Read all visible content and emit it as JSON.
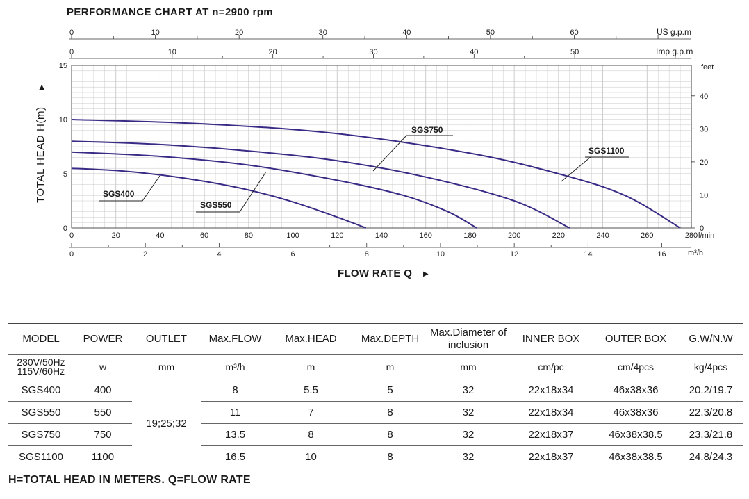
{
  "colors": {
    "curve": "#3a2a86",
    "grid": "#c8c8c8",
    "axis": "#333333",
    "text": "#1a1a1a"
  },
  "chart_data": {
    "type": "line",
    "title": "PERFORMANCE CHART AT n=2900 rpm",
    "ylabel": "TOTAL HEAD H(m)",
    "xlabel": "FLOW RATE Q",
    "ylim": [
      0,
      15
    ],
    "xlim": [
      0,
      280
    ],
    "grid": true,
    "y_ticks": [
      0,
      5,
      10,
      15
    ],
    "x_ticks": [
      0,
      20,
      40,
      60,
      80,
      100,
      120,
      140,
      160,
      180,
      200,
      220,
      240,
      260,
      280
    ],
    "x_unit": "l/min",
    "x2_ticks": [
      0,
      2,
      4,
      6,
      8,
      10,
      12,
      14,
      16
    ],
    "x2_unit": "m³/h",
    "top1_ticks": [
      0,
      10,
      20,
      30,
      40,
      50,
      60
    ],
    "top1_unit": "US g.p.m",
    "top2_ticks": [
      0,
      10,
      20,
      30,
      40,
      50
    ],
    "top2_unit": "Imp g.p.m",
    "right_ticks": [
      0,
      10,
      20,
      30,
      40
    ],
    "right_unit": "feet",
    "series": [
      {
        "name": "SGS400",
        "x": [
          0,
          20,
          40,
          60,
          80,
          100,
          120,
          133
        ],
        "y": [
          5.5,
          5.3,
          4.9,
          4.3,
          3.5,
          2.4,
          1.0,
          0
        ]
      },
      {
        "name": "SGS550",
        "x": [
          0,
          40,
          80,
          120,
          150,
          170,
          183
        ],
        "y": [
          7.0,
          6.6,
          5.8,
          4.4,
          3.0,
          1.5,
          0
        ]
      },
      {
        "name": "SGS750",
        "x": [
          0,
          40,
          80,
          120,
          160,
          200,
          225
        ],
        "y": [
          8.0,
          7.7,
          7.1,
          6.2,
          4.7,
          2.5,
          0
        ]
      },
      {
        "name": "SGS1100",
        "x": [
          0,
          60,
          120,
          180,
          220,
          250,
          275
        ],
        "y": [
          10.0,
          9.6,
          8.7,
          6.9,
          5.0,
          3.0,
          0
        ]
      }
    ]
  },
  "table": {
    "headers": [
      "MODEL",
      "POWER",
      "OUTLET",
      "Max.FLOW",
      "Max.HEAD",
      "Max.DEPTH",
      "Max.Diameter of inclusion",
      "INNER BOX",
      "OUTER BOX",
      "G.W/N.W"
    ],
    "units": [
      "230V/50Hz 115V/60Hz",
      "w",
      "mm",
      "m³/h",
      "m",
      "m",
      "mm",
      "cm/pc",
      "cm/4pcs",
      "kg/4pcs"
    ],
    "outlet": "19;25;32",
    "rows": [
      [
        "SGS400",
        "400",
        "8",
        "5.5",
        "5",
        "32",
        "22x18x34",
        "46x38x36",
        "20.2/19.7"
      ],
      [
        "SGS550",
        "550",
        "11",
        "7",
        "8",
        "32",
        "22x18x34",
        "46x38x36",
        "22.3/20.8"
      ],
      [
        "SGS750",
        "750",
        "13.5",
        "8",
        "8",
        "32",
        "22x18x37",
        "46x38x38.5",
        "23.3/21.8"
      ],
      [
        "SGS1100",
        "1100",
        "16.5",
        "10",
        "8",
        "32",
        "22x18x37",
        "46x38x38.5",
        "24.8/24.3"
      ]
    ]
  },
  "footnote": "H=TOTAL HEAD IN METERS.  Q=FLOW RATE"
}
